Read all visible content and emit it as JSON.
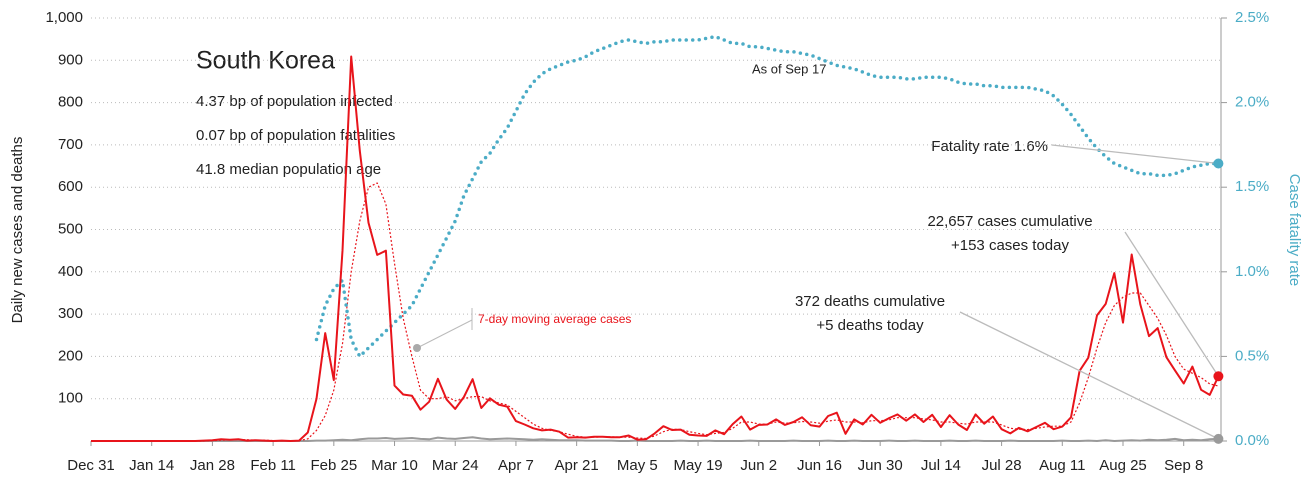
{
  "chart_data": {
    "type": "line",
    "title": "South Korea",
    "annotations": {
      "infected": "4.37 bp of population infected",
      "fatalities": "0.07 bp of population fatalities",
      "age": "41.8 median population age",
      "as_of": "As of Sep 17",
      "fatality_rate": "Fatality rate 1.6%",
      "cases_cumulative": "22,657 cases cumulative",
      "cases_today": "+153 cases today",
      "deaths_cumulative": "372 deaths cumulative",
      "deaths_today": "+5 deaths today"
    },
    "ylabel": "Daily new cases and deaths",
    "y2label": "Case fatality rate",
    "categories": [
      "Dec 31",
      null,
      null,
      null,
      null,
      null,
      null,
      "Jan 14",
      null,
      null,
      null,
      null,
      null,
      null,
      "Jan 28",
      null,
      null,
      null,
      null,
      null,
      null,
      "Feb 11",
      null,
      null,
      null,
      null,
      null,
      null,
      "Feb 25",
      null,
      null,
      null,
      null,
      null,
      null,
      "Mar 10",
      null,
      null,
      null,
      null,
      null,
      null,
      "Mar 24",
      null,
      null,
      null,
      null,
      null,
      null,
      "Apr 7",
      null,
      null,
      null,
      null,
      null,
      null,
      "Apr 21",
      null,
      null,
      null,
      null,
      null,
      null,
      "May 5",
      null,
      null,
      null,
      null,
      null,
      null,
      "May 19",
      null,
      null,
      null,
      null,
      null,
      null,
      "Jun 2",
      null,
      null,
      null,
      null,
      null,
      null,
      "Jun 16",
      null,
      null,
      null,
      null,
      null,
      null,
      "Jun 30",
      null,
      null,
      null,
      null,
      null,
      null,
      "Jul 14",
      null,
      null,
      null,
      null,
      null,
      null,
      "Jul 28",
      null,
      null,
      null,
      null,
      null,
      null,
      "Aug 11",
      null,
      null,
      null,
      null,
      null,
      null,
      "Aug 25",
      null,
      null,
      null,
      null,
      null,
      null,
      "Sep 8",
      null,
      null,
      null,
      null
    ],
    "series": [
      {
        "color": "#e8141b",
        "style": "solid",
        "values": [
          0,
          0,
          0,
          0,
          0,
          0,
          0,
          0,
          0,
          0,
          0,
          0,
          0,
          1,
          2,
          4,
          3,
          4,
          1,
          2,
          1,
          0,
          1,
          0,
          1,
          20,
          100,
          255,
          144,
          450,
          909,
          686,
          516,
          440,
          450,
          131,
          110,
          107,
          74,
          93,
          147,
          98,
          76,
          104,
          146,
          78,
          101,
          86,
          81,
          47,
          39,
          30,
          25,
          27,
          22,
          8,
          9,
          8,
          10,
          10,
          9,
          9,
          13,
          3,
          4,
          18,
          35,
          26,
          27,
          15,
          13,
          12,
          25,
          16,
          40,
          58,
          27,
          38,
          39,
          51,
          38,
          45,
          56,
          37,
          34,
          59,
          67,
          17,
          51,
          39,
          62,
          43,
          54,
          63,
          48,
          63,
          45,
          62,
          33,
          61,
          39,
          26,
          63,
          41,
          58,
          28,
          18,
          31,
          23,
          33,
          43,
          28,
          34,
          56,
          166,
          197,
          297,
          324,
          397,
          280,
          441,
          323,
          248,
          267,
          198,
          167,
          136,
          176,
          121,
          109,
          153
        ]
      },
      {
        "name": "7-day moving average cases",
        "color": "#e8141b",
        "style": "dotted",
        "values": [
          0,
          0,
          0,
          0,
          0,
          0,
          0,
          0,
          0,
          0,
          0,
          0,
          0,
          0,
          1,
          2,
          3,
          3,
          3,
          2,
          2,
          1,
          1,
          1,
          1,
          5,
          25,
          60,
          120,
          230,
          400,
          520,
          600,
          610,
          560,
          420,
          290,
          200,
          120,
          100,
          100,
          105,
          95,
          100,
          105,
          105,
          95,
          90,
          85,
          70,
          55,
          40,
          30,
          25,
          22,
          16,
          11,
          9,
          9,
          10,
          10,
          9,
          9,
          7,
          6,
          12,
          22,
          28,
          27,
          22,
          18,
          15,
          18,
          20,
          30,
          45,
          45,
          40,
          40,
          45,
          42,
          43,
          46,
          45,
          42,
          47,
          50,
          45,
          45,
          43,
          48,
          48,
          50,
          55,
          55,
          55,
          52,
          50,
          45,
          45,
          42,
          40,
          45,
          45,
          45,
          38,
          30,
          28,
          27,
          30,
          33,
          35,
          35,
          45,
          90,
          150,
          220,
          280,
          320,
          340,
          350,
          350,
          320,
          290,
          250,
          200,
          170,
          160,
          150,
          135,
          130
        ]
      },
      {
        "color": "#9a9a9a",
        "style": "solid",
        "values": [
          0,
          0,
          0,
          0,
          0,
          0,
          0,
          0,
          0,
          0,
          0,
          0,
          0,
          0,
          0,
          0,
          0,
          0,
          0,
          0,
          0,
          0,
          0,
          0,
          0,
          0,
          1,
          1,
          2,
          3,
          2,
          4,
          6,
          6,
          7,
          5,
          6,
          7,
          5,
          4,
          8,
          6,
          5,
          7,
          9,
          6,
          4,
          5,
          6,
          5,
          4,
          3,
          4,
          3,
          2,
          2,
          2,
          1,
          1,
          1,
          1,
          0,
          0,
          1,
          0,
          0,
          0,
          0,
          1,
          0,
          0,
          1,
          0,
          0,
          0,
          0,
          1,
          0,
          0,
          0,
          0,
          1,
          0,
          0,
          0,
          1,
          0,
          0,
          1,
          0,
          0,
          0,
          1,
          0,
          0,
          1,
          0,
          0,
          0,
          1,
          0,
          0,
          1,
          0,
          0,
          0,
          1,
          0,
          0,
          0,
          0,
          0,
          1,
          0,
          0,
          1,
          0,
          2,
          0,
          1,
          2,
          1,
          3,
          2,
          3,
          5,
          2,
          3,
          2,
          4,
          5
        ]
      },
      {
        "color": "#4bacc6",
        "style": "dots",
        "axis": "y2",
        "values": [
          null,
          null,
          null,
          null,
          null,
          null,
          null,
          null,
          null,
          null,
          null,
          null,
          null,
          null,
          null,
          null,
          null,
          null,
          null,
          null,
          null,
          null,
          null,
          null,
          null,
          null,
          0.6,
          0.8,
          0.9,
          0.95,
          0.6,
          0.5,
          0.55,
          0.6,
          0.65,
          0.7,
          0.75,
          0.8,
          0.9,
          1.0,
          1.1,
          1.2,
          1.3,
          1.45,
          1.55,
          1.65,
          1.7,
          1.78,
          1.85,
          1.95,
          2.05,
          2.12,
          2.17,
          2.2,
          2.22,
          2.24,
          2.25,
          2.27,
          2.3,
          2.32,
          2.34,
          2.36,
          2.37,
          2.36,
          2.35,
          2.36,
          2.36,
          2.37,
          2.37,
          2.37,
          2.37,
          2.38,
          2.39,
          2.37,
          2.35,
          2.35,
          2.33,
          2.33,
          2.32,
          2.31,
          2.3,
          2.3,
          2.29,
          2.28,
          2.26,
          2.24,
          2.22,
          2.21,
          2.2,
          2.18,
          2.16,
          2.15,
          2.15,
          2.15,
          2.14,
          2.14,
          2.15,
          2.15,
          2.15,
          2.14,
          2.12,
          2.11,
          2.11,
          2.1,
          2.1,
          2.09,
          2.09,
          2.09,
          2.09,
          2.08,
          2.07,
          2.04,
          1.99,
          1.93,
          1.86,
          1.79,
          1.73,
          1.68,
          1.64,
          1.62,
          1.6,
          1.58,
          1.58,
          1.57,
          1.57,
          1.58,
          1.6,
          1.62,
          1.63,
          1.64,
          1.64
        ]
      }
    ],
    "ylim": [
      0,
      1000
    ],
    "yticks": [
      100,
      200,
      300,
      400,
      500,
      600,
      700,
      800,
      900,
      {
        "value": 1000,
        "label": "1,000"
      }
    ],
    "y2lim": [
      0,
      2.5
    ],
    "y2ticks": [
      {
        "value": 0,
        "label": "0.0%"
      },
      {
        "value": 0.5,
        "label": "0.5%"
      },
      {
        "value": 1,
        "label": "1.0%"
      },
      {
        "value": 1.5,
        "label": "1.5%"
      },
      {
        "value": 2,
        "label": "2.0%"
      },
      {
        "value": 2.5,
        "label": "2.5%"
      }
    ],
    "grid": true
  }
}
